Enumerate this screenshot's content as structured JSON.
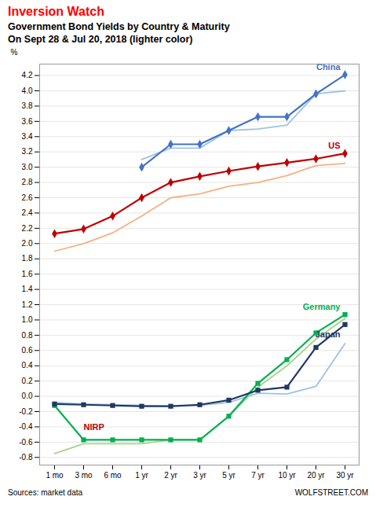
{
  "chart_data": {
    "type": "line",
    "title": "Inversion Watch",
    "subtitle": [
      "Government Bond Yields by Country & Maturity",
      "On Sept 28 & Jul 20, 2018 (lighter color)"
    ],
    "y_label": "%",
    "source": "Sources: market data",
    "credit": "WOLFSTREET.COM",
    "categories": [
      "1 mo",
      "3 mo",
      "6 mo",
      "1 yr",
      "2 yr",
      "3 yr",
      "5 yr",
      "7 yr",
      "10 yr",
      "20 yr",
      "30 yr"
    ],
    "series": [
      {
        "name": "China",
        "color": "#9DC3E6",
        "values": [
          null,
          null,
          null,
          3.1,
          3.25,
          3.25,
          3.48,
          3.5,
          3.55,
          3.96,
          4.0
        ]
      },
      {
        "name": "US",
        "color": "#F4B183",
        "values": [
          1.9,
          2.0,
          2.14,
          2.36,
          2.6,
          2.65,
          2.75,
          2.8,
          2.89,
          3.02,
          3.05
        ]
      },
      {
        "name": "Germany",
        "color": "#A9D18E",
        "values": [
          -0.75,
          -0.62,
          -0.62,
          -0.62,
          -0.57,
          -0.57,
          -0.26,
          0.12,
          0.4,
          0.75,
          1.02
        ]
      },
      {
        "name": "Japan",
        "color": "#9DC3E6",
        "values": [
          -0.08,
          -0.1,
          -0.11,
          -0.12,
          -0.13,
          -0.12,
          -0.08,
          0.04,
          0.03,
          0.13,
          0.69
        ]
      },
      {
        "name": "China",
        "color": "#4472C4",
        "marker": "diamond",
        "values": [
          null,
          null,
          null,
          3.0,
          3.3,
          3.3,
          3.48,
          3.66,
          3.66,
          3.96,
          4.21
        ]
      },
      {
        "name": "US",
        "color": "#C00000",
        "marker": "diamond",
        "values": [
          2.13,
          2.19,
          2.36,
          2.6,
          2.8,
          2.88,
          2.95,
          3.01,
          3.06,
          3.11,
          3.18
        ]
      },
      {
        "name": "Germany",
        "color": "#00B050",
        "marker": "square",
        "values": [
          -0.12,
          -0.57,
          -0.57,
          -0.57,
          -0.57,
          -0.57,
          -0.26,
          0.17,
          0.48,
          0.83,
          1.07
        ]
      },
      {
        "name": "Japan",
        "color": "#1F3864",
        "marker": "square",
        "values": [
          -0.1,
          -0.11,
          -0.12,
          -0.13,
          -0.13,
          -0.11,
          -0.05,
          0.08,
          0.12,
          0.64,
          0.94
        ]
      }
    ],
    "annotations": [
      {
        "text": "China",
        "color": "#4472C4"
      },
      {
        "text": "US",
        "color": "#C00000"
      },
      {
        "text": "Germany",
        "color": "#00B050"
      },
      {
        "text": "Japan",
        "color": "#1F3864"
      },
      {
        "text": "NIRP",
        "color": "#C00000"
      }
    ],
    "ylim": [
      -0.9,
      4.35
    ],
    "yticks": [
      -0.8,
      -0.6,
      -0.4,
      -0.2,
      {
        "value": 0,
        "label": "0.0"
      },
      0.2,
      0.4,
      0.6,
      0.8,
      {
        "value": 1,
        "label": "1.0"
      },
      1.2,
      1.4,
      1.6,
      1.8,
      {
        "value": 2,
        "label": "2.0"
      },
      2.2,
      2.4,
      2.6,
      2.8,
      {
        "value": 3,
        "label": "3.0"
      },
      3.2,
      3.4,
      3.6,
      3.8,
      {
        "value": 4,
        "label": "4.0"
      },
      4.2
    ],
    "grid": true
  }
}
